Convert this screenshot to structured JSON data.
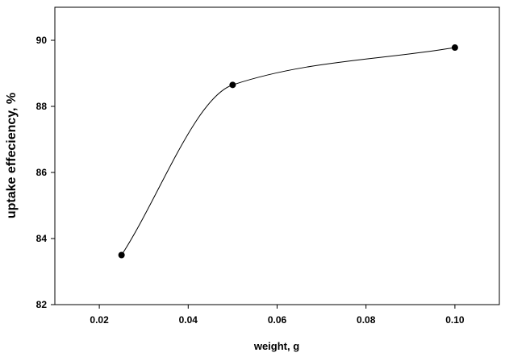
{
  "chart_data": {
    "type": "scatter",
    "title": "",
    "xlabel": "weight, g",
    "ylabel": "uptake effeciency, %",
    "xlim": [
      0.01,
      0.11
    ],
    "ylim": [
      82,
      91
    ],
    "xticks": [
      0.02,
      0.04,
      0.06,
      0.08,
      0.1
    ],
    "xtick_labels": [
      "0.02",
      "0.04",
      "0.06",
      "0.08",
      "0.10"
    ],
    "yticks": [
      82,
      84,
      86,
      88,
      90
    ],
    "ytick_labels": [
      "82",
      "84",
      "86",
      "88",
      "90"
    ],
    "grid": false,
    "legend": "none",
    "series": [
      {
        "x": [
          0.025,
          0.05,
          0.1
        ],
        "y": [
          83.5,
          88.65,
          89.78
        ],
        "marker": "filled-circle",
        "line": "smooth-curve",
        "color": "#000000"
      }
    ]
  }
}
